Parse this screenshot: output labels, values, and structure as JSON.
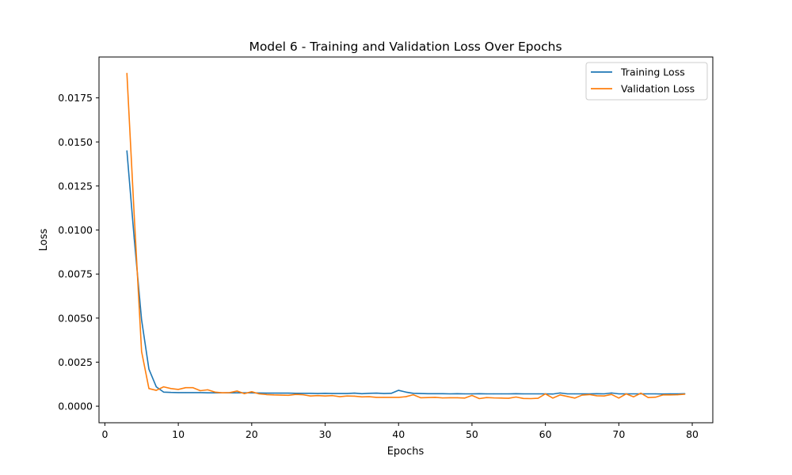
{
  "chart_data": {
    "type": "line",
    "title": "Model 6 - Training and Validation Loss Over Epochs",
    "xlabel": "Epochs",
    "ylabel": "Loss",
    "xlim": [
      -0.8,
      82.8
    ],
    "ylim": [
      -0.00094,
      0.01982
    ],
    "xticks": [
      0,
      10,
      20,
      30,
      40,
      50,
      60,
      70,
      80
    ],
    "yticks": [
      0.0,
      0.0025,
      0.005,
      0.0075,
      0.01,
      0.0125,
      0.015,
      0.0175
    ],
    "ytick_labels": [
      "0.0000",
      "0.0025",
      "0.0050",
      "0.0075",
      "0.0100",
      "0.0125",
      "0.0150",
      "0.0175"
    ],
    "legend_position": "top-right",
    "x": [
      3,
      4,
      5,
      6,
      7,
      8,
      9,
      10,
      11,
      12,
      13,
      14,
      15,
      16,
      17,
      18,
      19,
      20,
      21,
      22,
      23,
      24,
      25,
      26,
      27,
      28,
      29,
      30,
      31,
      32,
      33,
      34,
      35,
      36,
      37,
      38,
      39,
      40,
      41,
      42,
      43,
      44,
      45,
      46,
      47,
      48,
      49,
      50,
      51,
      52,
      53,
      54,
      55,
      56,
      57,
      58,
      59,
      60,
      61,
      62,
      63,
      64,
      65,
      66,
      67,
      68,
      69,
      70,
      71,
      72,
      73,
      74,
      75,
      76,
      77,
      78,
      79
    ],
    "series": [
      {
        "name": "Training Loss",
        "color": "#1f77b4",
        "values": [
          0.0145,
          0.0095,
          0.0049,
          0.0021,
          0.0011,
          0.0008,
          0.00078,
          0.00077,
          0.00077,
          0.00077,
          0.00077,
          0.00076,
          0.00076,
          0.00076,
          0.00076,
          0.00076,
          0.00076,
          0.00076,
          0.00075,
          0.00074,
          0.00074,
          0.00074,
          0.00074,
          0.00073,
          0.00073,
          0.00073,
          0.00072,
          0.00073,
          0.00072,
          0.00072,
          0.00072,
          0.00074,
          0.00071,
          0.00073,
          0.00074,
          0.00072,
          0.00073,
          0.0009,
          0.0008,
          0.00073,
          0.00072,
          0.00071,
          0.00071,
          0.00071,
          0.0007,
          0.00071,
          0.0007,
          0.0007,
          0.00071,
          0.0007,
          0.0007,
          0.0007,
          0.0007,
          0.00071,
          0.0007,
          0.0007,
          0.0007,
          0.0007,
          0.00069,
          0.00075,
          0.0007,
          0.0007,
          0.0007,
          0.0007,
          0.00071,
          0.0007,
          0.00075,
          0.0007,
          0.0007,
          0.0007,
          0.0007,
          0.0007,
          0.0007,
          0.00069,
          0.0007,
          0.0007,
          0.00071
        ]
      },
      {
        "name": "Validation Loss",
        "color": "#ff7f0e",
        "values": [
          0.0189,
          0.0108,
          0.0031,
          0.001,
          0.0009,
          0.0011,
          0.001,
          0.00095,
          0.00105,
          0.00105,
          0.00088,
          0.00093,
          0.0008,
          0.00076,
          0.00077,
          0.00086,
          0.00071,
          0.00082,
          0.0007,
          0.00066,
          0.00064,
          0.00063,
          0.00062,
          0.00067,
          0.00065,
          0.00058,
          0.0006,
          0.00058,
          0.0006,
          0.00054,
          0.00058,
          0.00057,
          0.00053,
          0.00054,
          0.0005,
          0.0005,
          0.0005,
          0.0005,
          0.00054,
          0.00065,
          0.00048,
          0.00049,
          0.0005,
          0.00047,
          0.00048,
          0.00048,
          0.00046,
          0.00061,
          0.00043,
          0.00049,
          0.00047,
          0.00046,
          0.00045,
          0.00052,
          0.00044,
          0.00043,
          0.00045,
          0.0007,
          0.00046,
          0.00064,
          0.00055,
          0.00046,
          0.00063,
          0.00066,
          0.00059,
          0.00058,
          0.00067,
          0.00046,
          0.0007,
          0.00053,
          0.00074,
          0.00049,
          0.00051,
          0.00064,
          0.00064,
          0.00065,
          0.00068
        ]
      }
    ]
  }
}
